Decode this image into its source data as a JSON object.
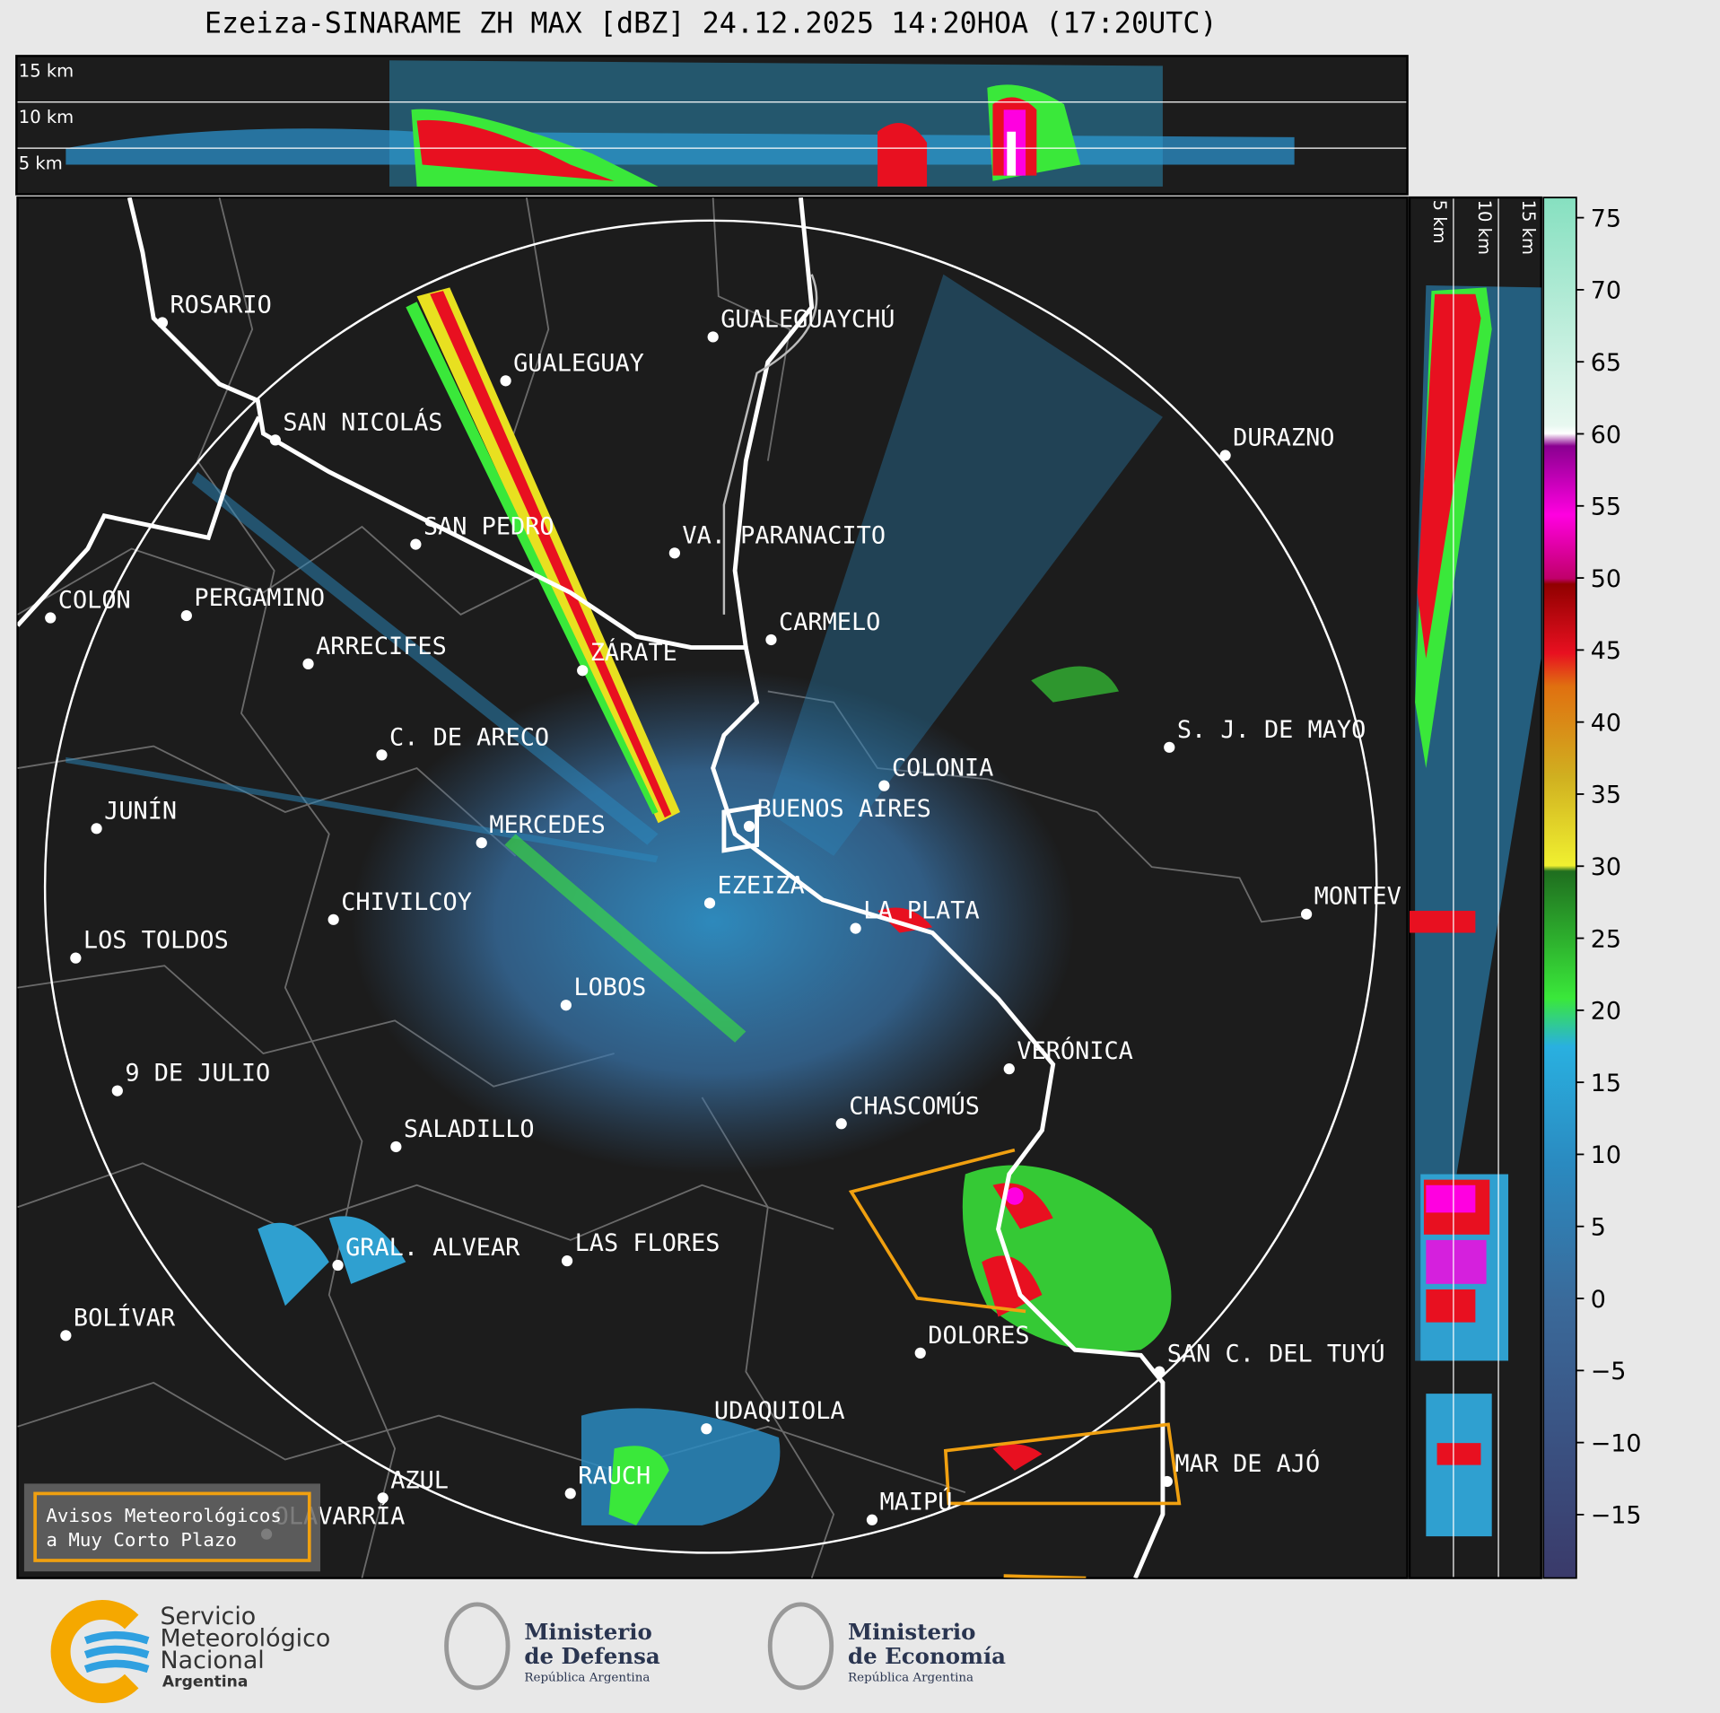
{
  "title": "Ezeiza-SINARAME ZH MAX [dBZ] 24.12.2025 14:20HOA (17:20UTC)",
  "top_panel": {
    "height_labels": [
      "15 km",
      "10 km",
      "5 km"
    ]
  },
  "side_panel": {
    "height_labels": [
      "5 km",
      "10 km",
      "15 km"
    ]
  },
  "cities": [
    "ROSARIO",
    "GUALEGUAYCHÚ",
    "GUALEGUAY",
    "SAN NICOLÁS",
    "DURAZNO",
    "SAN PEDRO",
    "VA. PARANACITO",
    "COLON",
    "PERGAMINO",
    "CARMELO",
    "ARRECIFES",
    "ZÁRATE",
    "S. J. DE MAYO",
    "C. DE ARECO",
    "COLONIA",
    "BUENOS AIRES",
    "JUNÍN",
    "MERCEDES",
    "MONTEV",
    "EZEIZA",
    "CHIVILCOY",
    "LA PLATA",
    "LOS TOLDOS",
    "LOBOS",
    "VERÓNICA",
    "9 DE JULIO",
    "CHASCOMÚS",
    "SALADILLO",
    "GRAL. ALVEAR",
    "LAS FLORES",
    "BOLÍVAR",
    "DOLORES",
    "SAN C. DEL TUYÚ",
    "UDAQUIOLA",
    "MAR DE AJÓ",
    "AZUL",
    "RAUCH",
    "OLAVARRÍA",
    "MAIPÚ"
  ],
  "warning_box": {
    "lines": [
      "Avisos Meteorológicos",
      "a Muy Corto Plazo"
    ]
  },
  "colorbar": {
    "lim": [
      -19.4,
      76.4
    ],
    "ticks": [
      75,
      70,
      65,
      60,
      55,
      50,
      45,
      40,
      35,
      30,
      25,
      20,
      15,
      10,
      5,
      0,
      {
        "value": -5,
        "label": "−5"
      },
      {
        "value": -10,
        "label": "−10"
      },
      {
        "value": -15,
        "label": "−15"
      }
    ]
  },
  "footer": {
    "smn": [
      "Servicio",
      "Meteorológico",
      "Nacional",
      "Argentina"
    ],
    "defensa": [
      "Ministerio",
      "de Defensa",
      "República Argentina"
    ],
    "economia": [
      "Ministerio",
      "de Economía",
      "República Argentina"
    ]
  }
}
